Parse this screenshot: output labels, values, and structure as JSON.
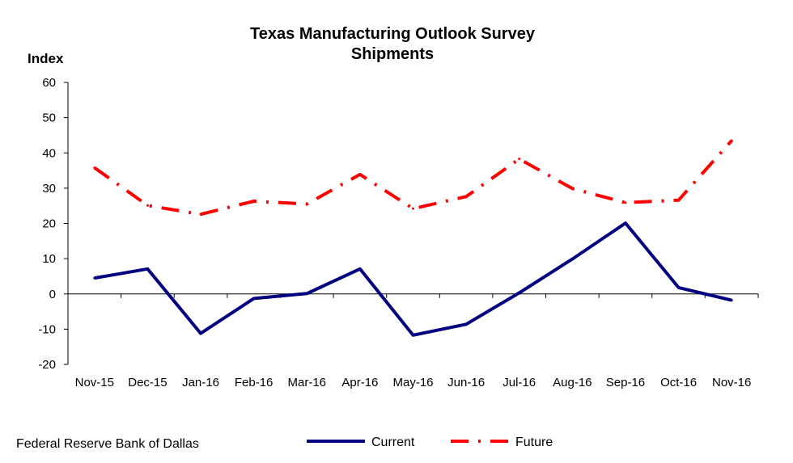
{
  "source_note": "Federal Reserve Bank of Dallas",
  "chart_data": {
    "type": "line",
    "title": "Texas Manufacturing Outlook Survey",
    "subtitle": "Shipments",
    "ylabel": "Index",
    "xlabel": "",
    "ylim": [
      -20,
      60
    ],
    "yticks": [
      -20,
      -10,
      0,
      10,
      20,
      30,
      40,
      50,
      60
    ],
    "grid": false,
    "legend_position": "bottom-center",
    "categories": [
      "Nov-15",
      "Dec-15",
      "Jan-16",
      "Feb-16",
      "Mar-16",
      "Apr-16",
      "May-16",
      "Jun-16",
      "Jul-16",
      "Aug-16",
      "Sep-16",
      "Oct-16",
      "Nov-16"
    ],
    "series": [
      {
        "name": "Current",
        "color": "#000080",
        "style": "solid",
        "values": [
          4.5,
          7.1,
          -11.2,
          -1.3,
          0.1,
          7.1,
          -11.7,
          -8.6,
          0.3,
          9.9,
          20.1,
          1.8,
          -1.8
        ]
      },
      {
        "name": "Future",
        "color": "#ff0000",
        "style": "dash-dot",
        "values": [
          35.8,
          25.1,
          22.6,
          26.3,
          25.5,
          33.9,
          24.2,
          27.6,
          38.3,
          29.9,
          25.9,
          26.6,
          43.5
        ]
      }
    ]
  }
}
